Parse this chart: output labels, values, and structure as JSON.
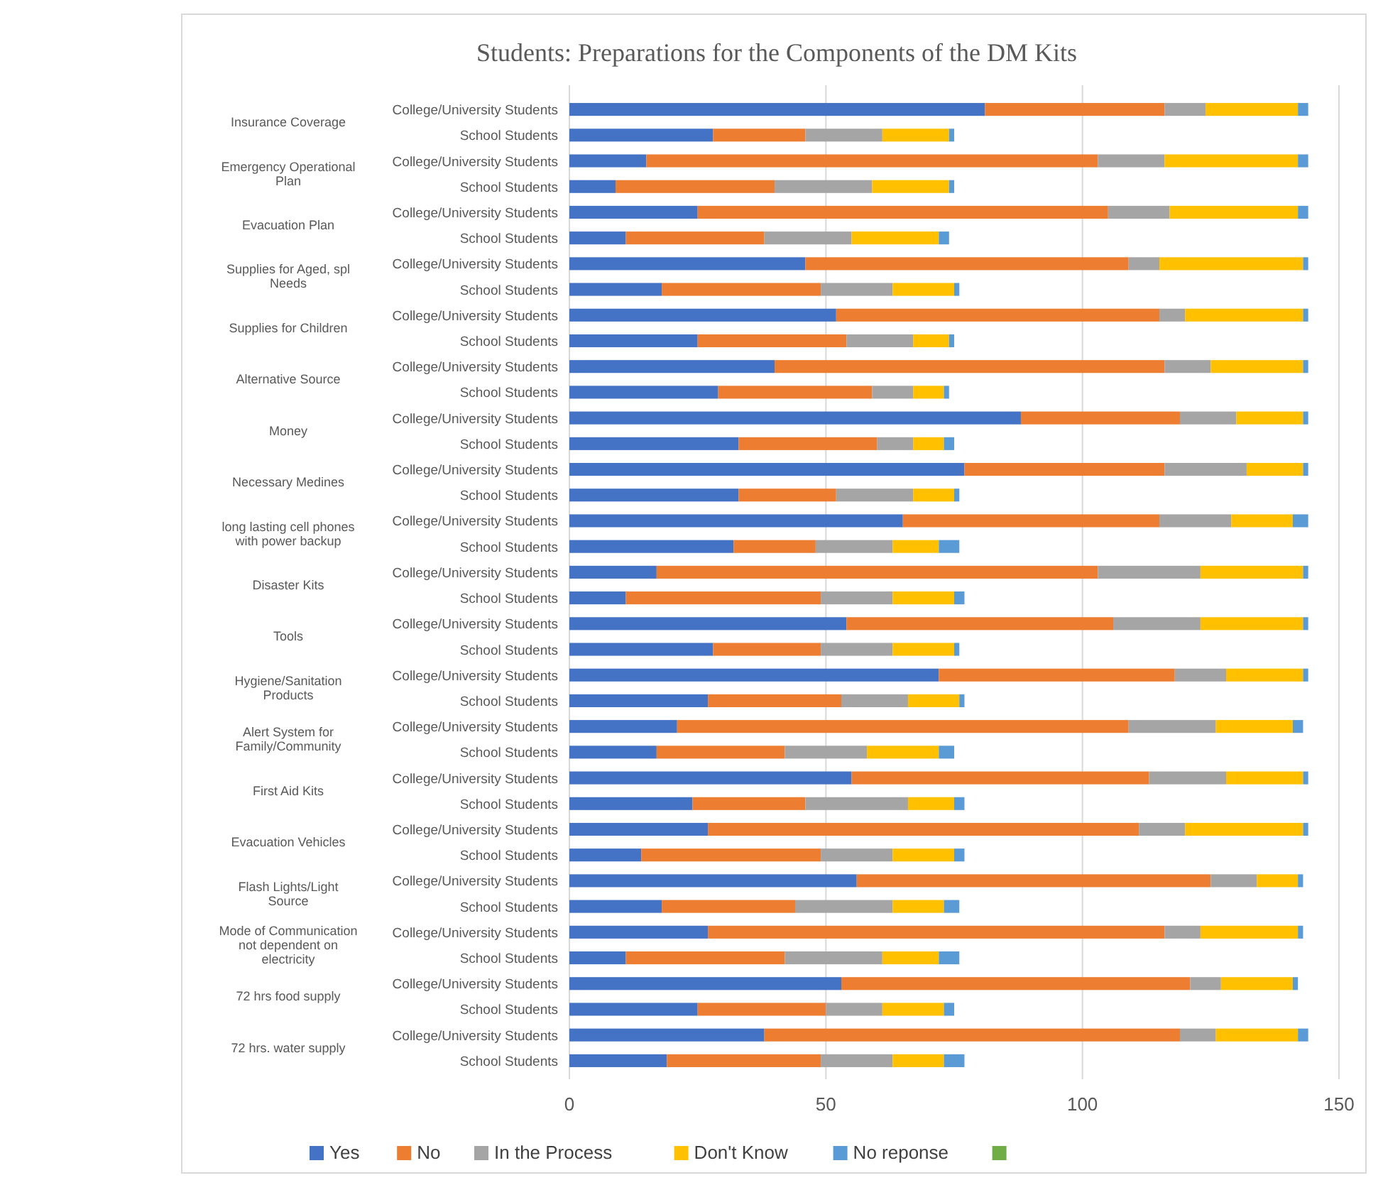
{
  "chart_data": {
    "type": "bar",
    "orientation": "horizontal",
    "stacked": true,
    "title": "Students: Preparations for the Components of the DM Kits",
    "categories": [
      "College/University Students",
      "School Students",
      "College/University Students",
      "School Students",
      "College/University Students",
      "School Students",
      "College/University Students",
      "School Students",
      "College/University Students",
      "School Students",
      "College/University Students",
      "School Students",
      "College/University Students",
      "School Students",
      "College/University Students",
      "School Students",
      "College/University Students",
      "School Students",
      "College/University Students",
      "School Students",
      "College/University Students",
      "School Students",
      "College/University Students",
      "School Students",
      "College/University Students",
      "School Students",
      "College/University Students",
      "School Students",
      "College/University Students",
      "School Students",
      "College/University Students",
      "School Students",
      "College/University Students",
      "School Students",
      "College/University Students",
      "School Students",
      "College/University Students",
      "School Students"
    ],
    "annotations": [
      "Insurance Coverage",
      "Emergency Operational Plan",
      "Evacuation Plan",
      "Supplies for Aged, spl Needs",
      "Supplies for Children",
      "Alternative Source",
      "Money",
      "Necessary Medines",
      "long lasting cell phones with power backup",
      "Disaster Kits",
      "Tools",
      "Hygiene/Sanitation Products",
      "Alert System for Family/Community",
      "First Aid Kits",
      "Evacuation Vehicles",
      "Flash Lights/Light Source",
      "Mode of Communication not dependent on electricity",
      "72 hrs food supply",
      "72 hrs. water supply"
    ],
    "series": [
      {
        "name": "Yes",
        "color": "#4472c4",
        "values": [
          81,
          28,
          15,
          9,
          25,
          11,
          46,
          18,
          52,
          25,
          40,
          29,
          88,
          33,
          77,
          33,
          65,
          32,
          17,
          11,
          54,
          28,
          72,
          27,
          21,
          17,
          55,
          24,
          27,
          14,
          56,
          18,
          27,
          11,
          53,
          25,
          38,
          19
        ]
      },
      {
        "name": "No",
        "color": "#ed7d31",
        "values": [
          35,
          18,
          88,
          31,
          80,
          27,
          63,
          31,
          63,
          29,
          76,
          30,
          31,
          27,
          39,
          19,
          50,
          16,
          86,
          38,
          52,
          21,
          46,
          26,
          88,
          25,
          58,
          22,
          84,
          35,
          69,
          26,
          89,
          31,
          68,
          25,
          81,
          30
        ]
      },
      {
        "name": "In the Process",
        "color": "#a5a5a5",
        "values": [
          8,
          15,
          13,
          19,
          12,
          17,
          6,
          14,
          5,
          13,
          9,
          8,
          11,
          7,
          16,
          15,
          14,
          15,
          20,
          14,
          17,
          14,
          10,
          13,
          17,
          16,
          15,
          20,
          9,
          14,
          9,
          19,
          7,
          19,
          6,
          11,
          7,
          14
        ]
      },
      {
        "name": "Don't Know",
        "color": "#ffc000",
        "values": [
          18,
          13,
          26,
          15,
          25,
          17,
          28,
          12,
          23,
          7,
          18,
          6,
          13,
          6,
          11,
          8,
          12,
          9,
          20,
          12,
          20,
          12,
          15,
          10,
          15,
          14,
          15,
          9,
          23,
          12,
          8,
          10,
          19,
          11,
          14,
          12,
          16,
          10
        ]
      },
      {
        "name": "No reponse",
        "color": "#5b9bd5",
        "values": [
          2,
          1,
          2,
          1,
          2,
          2,
          1,
          1,
          1,
          1,
          1,
          1,
          1,
          2,
          1,
          1,
          3,
          4,
          1,
          2,
          1,
          1,
          1,
          1,
          2,
          3,
          1,
          2,
          1,
          2,
          1,
          3,
          1,
          4,
          1,
          2,
          2,
          4
        ]
      },
      {
        "color": "#70ad47",
        "values": [
          null,
          null,
          null,
          null,
          null,
          null,
          null,
          null,
          null,
          null,
          null,
          null,
          null,
          null,
          null,
          null,
          null,
          null,
          null,
          null,
          null,
          null,
          null,
          null,
          null,
          null,
          null,
          null,
          null,
          null,
          null,
          null,
          null,
          null,
          null,
          null,
          null,
          null
        ]
      }
    ],
    "xlim": [
      0,
      150
    ],
    "xticks": [
      0,
      50,
      100,
      150
    ],
    "grid": "x",
    "legend": "bottom"
  }
}
